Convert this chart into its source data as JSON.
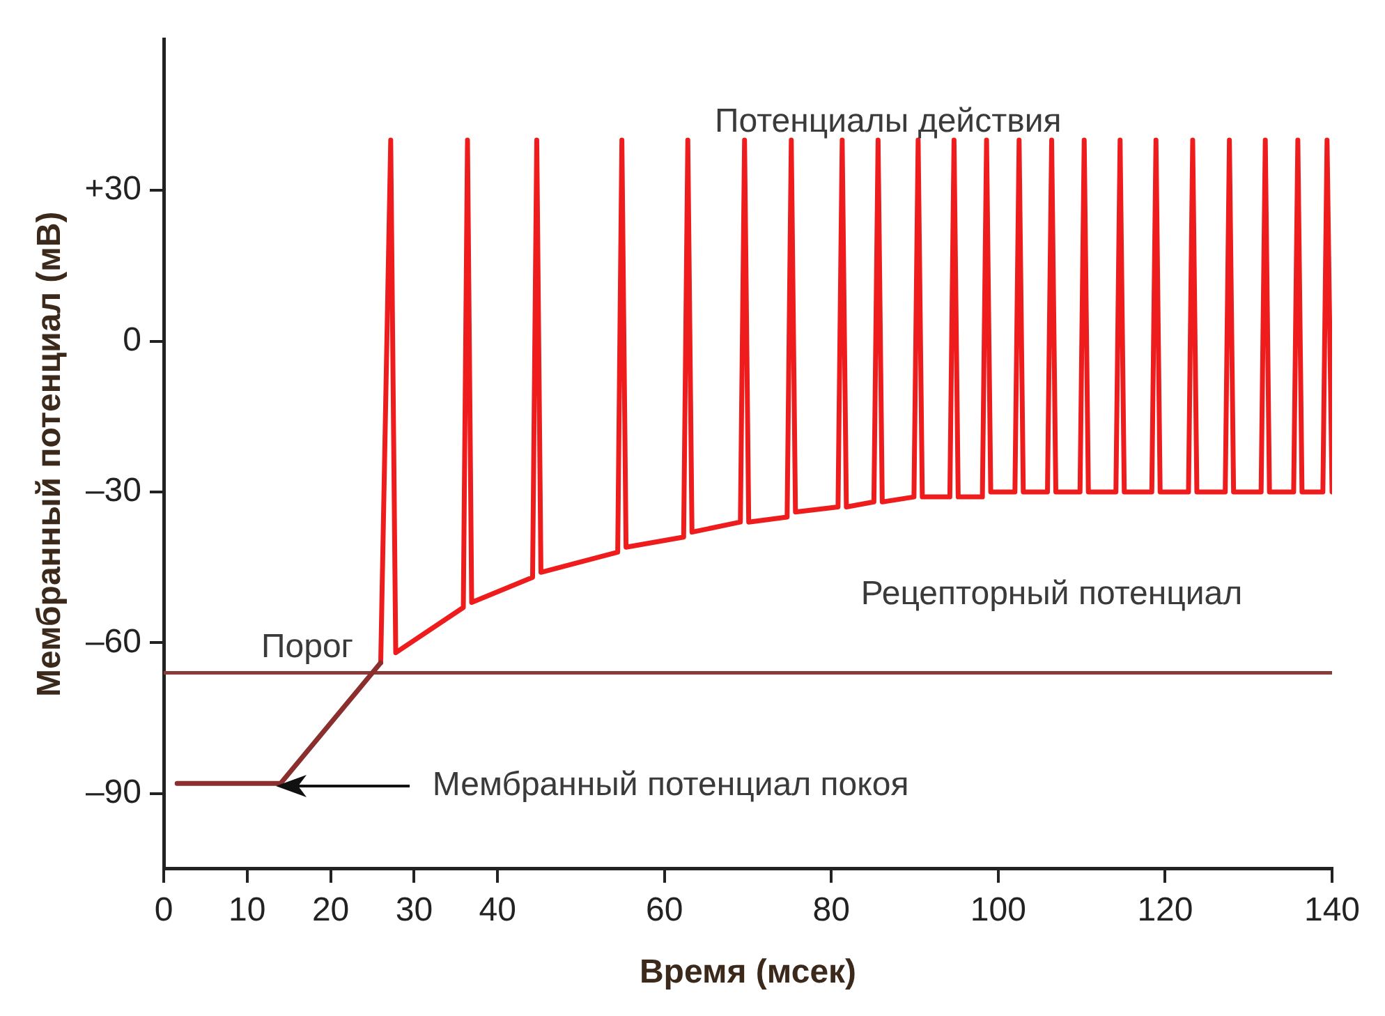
{
  "chart_data": {
    "type": "line",
    "xlabel": "Время (мсек)",
    "ylabel": "Мембранный потенциал (мВ)",
    "xlim": [
      0,
      140
    ],
    "xticks": [
      0,
      10,
      20,
      30,
      40,
      60,
      80,
      100,
      120,
      140
    ],
    "ylim": [
      -105,
      60
    ],
    "yticks": [
      {
        "value": 30,
        "label": "+30"
      },
      0,
      {
        "value": -30,
        "label": "–30"
      },
      {
        "value": -60,
        "label": "–60"
      },
      {
        "value": -90,
        "label": "–90"
      }
    ],
    "grid": false,
    "legend": false,
    "marker": "none",
    "line_style": "solid",
    "series": [
      {
        "color": "#8b2e2e",
        "x": [
          1.6,
          14,
          26
        ],
        "values": [
          -88,
          -88,
          -64
        ]
      },
      {
        "color": "#ee1c1c",
        "x": [
          26,
          27.2,
          27.8,
          35.9,
          36.4,
          36.9,
          44.2,
          44.7,
          45.2,
          54.4,
          54.9,
          55.4,
          62.3,
          62.8,
          63.3,
          69.1,
          69.6,
          70.1,
          74.7,
          75.2,
          75.7,
          80.8,
          81.3,
          81.8,
          85.1,
          85.6,
          86.1,
          89.9,
          90.4,
          90.9,
          94.2,
          94.7,
          95.2,
          98.1,
          98.6,
          99.1,
          102,
          102.5,
          103,
          105.9,
          106.4,
          106.9,
          109.8,
          110.3,
          110.8,
          114.1,
          114.6,
          115.1,
          118.4,
          118.9,
          119.4,
          122.8,
          123.3,
          123.8,
          127.2,
          127.7,
          128.2,
          131.5,
          132,
          132.5,
          135.4,
          135.9,
          136.4,
          138.9,
          139.4,
          140
        ],
        "values": [
          -64,
          40,
          -62,
          -53,
          40,
          -52,
          -47,
          40,
          -46,
          -42,
          40,
          -41,
          -39,
          40,
          -38,
          -36,
          40,
          -36,
          -35,
          40,
          -34,
          -33,
          40,
          -33,
          -32,
          40,
          -32,
          -31,
          40,
          -31,
          -31,
          40,
          -31,
          -31,
          40,
          -30,
          -30,
          40,
          -30,
          -30,
          40,
          -30,
          -30,
          40,
          -30,
          -30,
          40,
          -30,
          -30,
          40,
          -30,
          -30,
          40,
          -30,
          -30,
          40,
          -30,
          -30,
          40,
          -30,
          -30,
          40,
          -30,
          -30,
          40,
          -30
        ]
      }
    ],
    "ref_lines": [
      {
        "axis": "y",
        "value": -66,
        "label": "Порог",
        "color": "#8b3a3a"
      }
    ],
    "annotations": [
      "Потенциалы действия",
      "Рецепторный потенциал",
      "Мембранный потенциал покоя"
    ]
  }
}
